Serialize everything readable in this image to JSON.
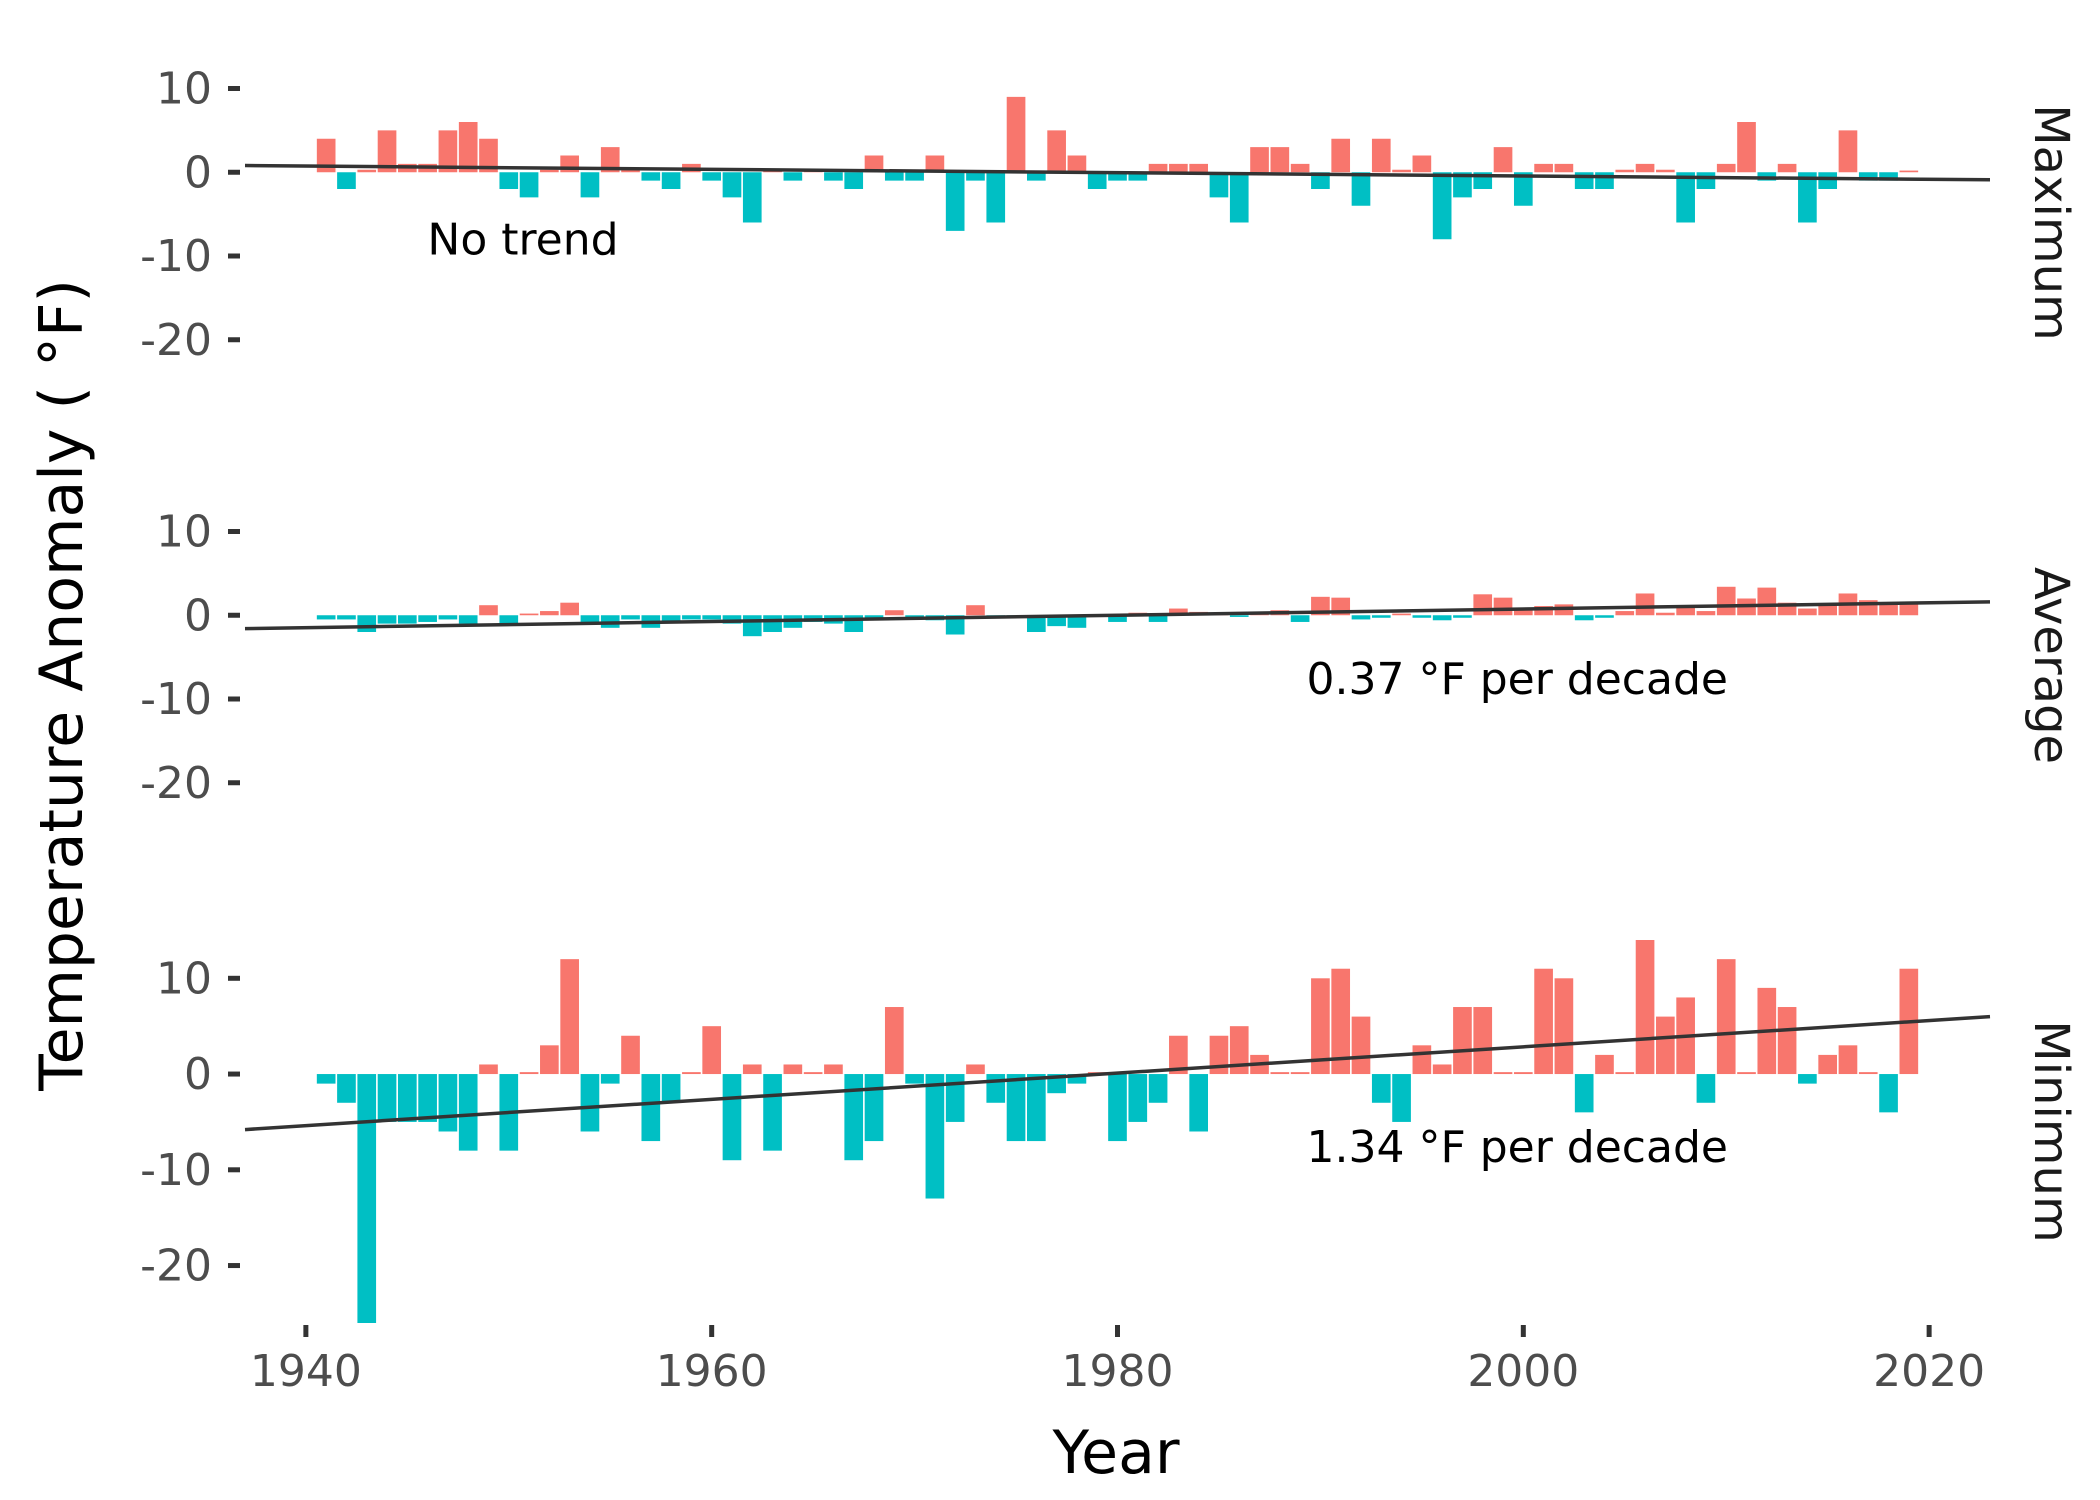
{
  "chart_data": {
    "type": "bar",
    "xlabel": "Year",
    "ylabel": "Temperature Anomaly ( °F)",
    "xlim": [
      1937,
      2023
    ],
    "x_ticks": [
      1940,
      1960,
      1980,
      2000,
      2020
    ],
    "y_ticks": [
      10,
      0,
      -10,
      -20
    ],
    "colors": {
      "positive": "#F8766D",
      "negative": "#00BFC4",
      "trend": "#333333"
    },
    "years": [
      1941,
      1942,
      1943,
      1944,
      1945,
      1946,
      1947,
      1948,
      1949,
      1950,
      1951,
      1952,
      1953,
      1954,
      1955,
      1956,
      1957,
      1958,
      1959,
      1960,
      1961,
      1962,
      1963,
      1964,
      1965,
      1966,
      1967,
      1968,
      1969,
      1970,
      1971,
      1972,
      1973,
      1974,
      1975,
      1976,
      1977,
      1978,
      1979,
      1980,
      1981,
      1982,
      1983,
      1984,
      1985,
      1986,
      1987,
      1988,
      1989,
      1990,
      1991,
      1992,
      1993,
      1994,
      1995,
      1996,
      1997,
      1998,
      1999,
      2000,
      2001,
      2002,
      2003,
      2004,
      2005,
      2006,
      2007,
      2008,
      2009,
      2010,
      2011,
      2012,
      2013,
      2014,
      2015,
      2016,
      2017,
      2018,
      2019
    ],
    "panels": [
      {
        "strip": "Maximum",
        "annotation": "No trend",
        "ylim": [
          -26,
          14
        ],
        "trend": {
          "x": [
            1937,
            2023
          ],
          "y": [
            0.8,
            -0.9
          ]
        },
        "values": [
          4,
          -2,
          0.3,
          5,
          1,
          1,
          5,
          6,
          4,
          -2,
          -3,
          0.3,
          2,
          -3,
          3,
          0.3,
          -1,
          -2,
          1,
          -1,
          -3,
          -6,
          0.3,
          -1,
          0.3,
          -1,
          -2,
          2,
          -1,
          -1,
          2,
          -7,
          -1,
          -6,
          9,
          -1,
          5,
          2,
          -2,
          -1,
          -1,
          1,
          1,
          1,
          -3,
          -6,
          3,
          3,
          1,
          -2,
          4,
          -4,
          4,
          0.3,
          2,
          -8,
          -3,
          -2,
          3,
          -4,
          1,
          1,
          -2,
          -2,
          0.3,
          1,
          0.3,
          -6,
          -2,
          1,
          6,
          -1,
          1,
          -6,
          -2,
          5,
          -1,
          -1,
          0.2
        ]
      },
      {
        "strip": "Average",
        "annotation": "0.37 °F per decade",
        "ylim": [
          -26,
          14
        ],
        "trend": {
          "x": [
            1937,
            2023
          ],
          "y": [
            -1.6,
            1.6
          ]
        },
        "values": [
          -0.5,
          -0.5,
          -2,
          -1,
          -1,
          -0.8,
          -0.5,
          -1,
          1.2,
          -1,
          0.2,
          0.5,
          1.5,
          -0.8,
          -1.5,
          -0.5,
          -1.5,
          -0.8,
          -0.5,
          -0.5,
          -1,
          -2.5,
          -2,
          -1.5,
          -0.8,
          -1,
          -2,
          -0.5,
          0.6,
          -0.3,
          -0.6,
          -2.3,
          1.2,
          -0.2,
          -0.2,
          -2,
          -1.3,
          -1.5,
          -0.2,
          -0.8,
          0.3,
          -0.8,
          0.8,
          0.4,
          0.2,
          -0.2,
          0.2,
          0.6,
          -0.8,
          2.2,
          2.1,
          -0.5,
          -0.3,
          0.2,
          -0.3,
          -0.6,
          -0.3,
          2.5,
          2.1,
          0.8,
          1.1,
          1.3,
          -0.6,
          -0.3,
          0.5,
          2.6,
          0.3,
          1,
          0.5,
          3.4,
          2,
          3.3,
          1.5,
          0.8,
          1.3,
          2.6,
          1.8,
          1.5,
          1.5
        ]
      },
      {
        "strip": "Minimum",
        "annotation": "1.34 °F per decade",
        "ylim": [
          -26,
          14
        ],
        "trend": {
          "x": [
            1937,
            2023
          ],
          "y": [
            -5.8,
            6
          ]
        },
        "values": [
          -1,
          -3,
          -26,
          -5,
          -5,
          -5,
          -6,
          -8,
          1,
          -8,
          0.2,
          3,
          12,
          -6,
          -1,
          4,
          -7,
          -3,
          0.2,
          5,
          -9,
          1,
          -8,
          1,
          0.2,
          1,
          -9,
          -7,
          7,
          -1,
          -13,
          -5,
          1,
          -3,
          -7,
          -7,
          -2,
          -1,
          0.2,
          -7,
          -5,
          -3,
          4,
          -6,
          4,
          5,
          2,
          0.2,
          0.2,
          10,
          11,
          6,
          -3,
          -5,
          3,
          1,
          7,
          7,
          0.2,
          0.2,
          11,
          10,
          -4,
          2,
          0.2,
          14,
          6,
          8,
          -3,
          12,
          0.2,
          9,
          7,
          -1,
          2,
          3,
          0.2,
          -4,
          11
        ]
      }
    ]
  }
}
